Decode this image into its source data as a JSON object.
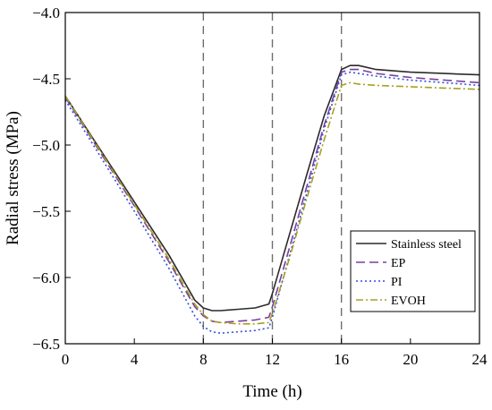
{
  "chart_data": {
    "type": "line",
    "title": "",
    "xlabel": "Time (h)",
    "ylabel": "Radial stress (MPa)",
    "xlim": [
      0,
      24
    ],
    "ylim": [
      -6.5,
      -4.0
    ],
    "xticks": [
      0,
      4,
      8,
      12,
      16,
      20,
      24
    ],
    "yticks": [
      -4.0,
      -4.5,
      -5.0,
      -5.5,
      -6.0,
      -6.5
    ],
    "xtick_labels": [
      "0",
      "4",
      "8",
      "12",
      "16",
      "20",
      "24"
    ],
    "ytick_labels": [
      "−4.0",
      "−4.5",
      "−5.0",
      "−5.5",
      "−6.0",
      "−6.5"
    ],
    "vlines": [
      8,
      12,
      16
    ],
    "grid": false,
    "legend_position": "bottom-right",
    "series": [
      {
        "name": "Stainless steel",
        "color": "#2b2b2b",
        "style": "solid",
        "points": [
          [
            0,
            -4.63
          ],
          [
            2,
            -5.03
          ],
          [
            4,
            -5.43
          ],
          [
            6,
            -5.83
          ],
          [
            7.5,
            -6.17
          ],
          [
            8,
            -6.23
          ],
          [
            8.5,
            -6.25
          ],
          [
            9,
            -6.25
          ],
          [
            10,
            -6.24
          ],
          [
            11,
            -6.23
          ],
          [
            11.8,
            -6.2
          ],
          [
            12,
            -6.12
          ],
          [
            13,
            -5.67
          ],
          [
            14,
            -5.22
          ],
          [
            15,
            -4.78
          ],
          [
            16,
            -4.43
          ],
          [
            16.5,
            -4.4
          ],
          [
            17,
            -4.4
          ],
          [
            18,
            -4.43
          ],
          [
            20,
            -4.45
          ],
          [
            22,
            -4.46
          ],
          [
            24,
            -4.47
          ]
        ]
      },
      {
        "name": "EP",
        "color": "#7a3fa0",
        "style": "dashed",
        "points": [
          [
            0,
            -4.64
          ],
          [
            2,
            -5.05
          ],
          [
            4,
            -5.46
          ],
          [
            6,
            -5.88
          ],
          [
            7.5,
            -6.22
          ],
          [
            8,
            -6.29
          ],
          [
            8.5,
            -6.33
          ],
          [
            9,
            -6.34
          ],
          [
            10,
            -6.33
          ],
          [
            11,
            -6.32
          ],
          [
            11.8,
            -6.3
          ],
          [
            12,
            -6.22
          ],
          [
            13,
            -5.77
          ],
          [
            14,
            -5.31
          ],
          [
            15,
            -4.85
          ],
          [
            16,
            -4.45
          ],
          [
            16.5,
            -4.43
          ],
          [
            17,
            -4.43
          ],
          [
            18,
            -4.46
          ],
          [
            20,
            -4.49
          ],
          [
            22,
            -4.51
          ],
          [
            24,
            -4.53
          ]
        ]
      },
      {
        "name": "PI",
        "color": "#2f4fd8",
        "style": "dotted",
        "points": [
          [
            0,
            -4.66
          ],
          [
            2,
            -5.08
          ],
          [
            4,
            -5.5
          ],
          [
            6,
            -5.93
          ],
          [
            7.5,
            -6.29
          ],
          [
            8,
            -6.37
          ],
          [
            8.5,
            -6.41
          ],
          [
            9,
            -6.42
          ],
          [
            10,
            -6.41
          ],
          [
            11,
            -6.4
          ],
          [
            11.8,
            -6.38
          ],
          [
            12,
            -6.3
          ],
          [
            13,
            -5.83
          ],
          [
            14,
            -5.36
          ],
          [
            15,
            -4.88
          ],
          [
            16,
            -4.47
          ],
          [
            16.5,
            -4.45
          ],
          [
            17,
            -4.46
          ],
          [
            18,
            -4.48
          ],
          [
            20,
            -4.51
          ],
          [
            22,
            -4.53
          ],
          [
            24,
            -4.55
          ]
        ]
      },
      {
        "name": "EVOH",
        "color": "#a8a020",
        "style": "dashdot",
        "points": [
          [
            0,
            -4.63
          ],
          [
            2,
            -5.04
          ],
          [
            4,
            -5.45
          ],
          [
            6,
            -5.86
          ],
          [
            7.5,
            -6.2
          ],
          [
            8,
            -6.28
          ],
          [
            8.5,
            -6.33
          ],
          [
            9,
            -6.34
          ],
          [
            10,
            -6.35
          ],
          [
            11,
            -6.35
          ],
          [
            11.8,
            -6.34
          ],
          [
            12,
            -6.27
          ],
          [
            13,
            -5.85
          ],
          [
            14,
            -5.4
          ],
          [
            15,
            -4.96
          ],
          [
            16,
            -4.55
          ],
          [
            16.5,
            -4.53
          ],
          [
            17,
            -4.54
          ],
          [
            18,
            -4.55
          ],
          [
            20,
            -4.56
          ],
          [
            22,
            -4.57
          ],
          [
            24,
            -4.58
          ]
        ]
      }
    ]
  }
}
